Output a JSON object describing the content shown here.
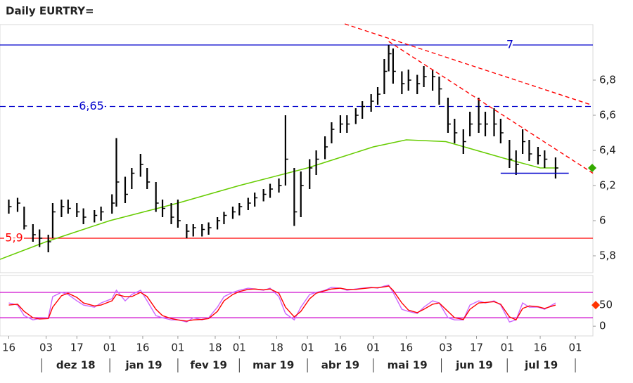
{
  "chart_data": {
    "type": "ohlc",
    "title": "Daily EURTRY=",
    "xlim": [
      "2018-11-12",
      "2019-08-09"
    ],
    "xticks": [
      {
        "value": "2018-11-16",
        "label": "16"
      },
      {
        "value": "2018-12-03",
        "label": "03"
      },
      {
        "value": "2018-12-17",
        "label": "17"
      },
      {
        "value": "2019-01-01",
        "label": "01"
      },
      {
        "value": "2019-01-16",
        "label": "16"
      },
      {
        "value": "2019-02-01",
        "label": "01"
      },
      {
        "value": "2019-02-18",
        "label": "18"
      },
      {
        "value": "2019-03-01",
        "label": "01"
      },
      {
        "value": "2019-03-18",
        "label": "18"
      },
      {
        "value": "2019-04-01",
        "label": "01"
      },
      {
        "value": "2019-04-16",
        "label": "16"
      },
      {
        "value": "2019-05-01",
        "label": "01"
      },
      {
        "value": "2019-05-16",
        "label": "16"
      },
      {
        "value": "2019-06-03",
        "label": "03"
      },
      {
        "value": "2019-06-17",
        "label": "17"
      },
      {
        "value": "2019-07-01",
        "label": "01"
      },
      {
        "value": "2019-07-16",
        "label": "16"
      },
      {
        "value": "2019-08-01",
        "label": "01"
      }
    ],
    "months": [
      {
        "label": "dez 18",
        "start": "2018-12-01"
      },
      {
        "label": "jan 19",
        "start": "2019-01-01"
      },
      {
        "label": "fev 19",
        "start": "2019-02-01"
      },
      {
        "label": "mar 19",
        "start": "2019-03-01"
      },
      {
        "label": "abr 19",
        "start": "2019-04-01"
      },
      {
        "label": "mai 19",
        "start": "2019-05-01"
      },
      {
        "label": "jun 19",
        "start": "2019-06-01"
      },
      {
        "label": "jul 19",
        "start": "2019-07-01"
      }
    ],
    "months_end": "2019-08-01",
    "ylim": [
      5.704,
      7.116
    ],
    "yticks": [
      {
        "value": 5.8,
        "label": "5,8"
      },
      6,
      {
        "value": 6.2,
        "label": "6,2"
      },
      {
        "value": 6.4,
        "label": "6,4"
      },
      {
        "value": 6.6,
        "label": "6,6"
      },
      {
        "value": 6.8,
        "label": "6,8"
      }
    ],
    "bars": {
      "color": "#000000",
      "x": [
        "2018-11-16",
        "2018-11-20",
        "2018-11-23",
        "2018-11-27",
        "2018-11-30",
        "2018-12-04",
        "2018-12-06",
        "2018-12-10",
        "2018-12-13",
        "2018-12-17",
        "2018-12-20",
        "2018-12-25",
        "2018-12-28",
        "2019-01-02",
        "2019-01-04",
        "2019-01-08",
        "2019-01-11",
        "2019-01-15",
        "2019-01-18",
        "2019-01-22",
        "2019-01-25",
        "2019-01-29",
        "2019-02-01",
        "2019-02-05",
        "2019-02-08",
        "2019-02-12",
        "2019-02-15",
        "2019-02-19",
        "2019-02-22",
        "2019-02-26",
        "2019-03-01",
        "2019-03-05",
        "2019-03-08",
        "2019-03-12",
        "2019-03-15",
        "2019-03-19",
        "2019-03-22",
        "2019-03-26",
        "2019-03-29",
        "2019-04-02",
        "2019-04-05",
        "2019-04-09",
        "2019-04-12",
        "2019-04-16",
        "2019-04-19",
        "2019-04-23",
        "2019-04-26",
        "2019-04-30",
        "2019-05-03",
        "2019-05-06",
        "2019-05-08",
        "2019-05-10",
        "2019-05-14",
        "2019-05-17",
        "2019-05-21",
        "2019-05-24",
        "2019-05-28",
        "2019-05-31",
        "2019-06-04",
        "2019-06-07",
        "2019-06-11",
        "2019-06-14",
        "2019-06-18",
        "2019-06-21",
        "2019-06-25",
        "2019-06-28",
        "2019-07-02",
        "2019-07-05",
        "2019-07-08",
        "2019-07-11",
        "2019-07-15",
        "2019-07-18",
        "2019-07-23"
      ],
      "high": [
        6.12,
        6.13,
        6.08,
        5.98,
        5.95,
        5.92,
        6.1,
        6.12,
        6.12,
        6.1,
        6.07,
        6.06,
        6.08,
        6.15,
        6.47,
        6.25,
        6.3,
        6.38,
        6.3,
        6.22,
        6.12,
        6.1,
        6.12,
        5.98,
        5.98,
        5.98,
        5.99,
        6.02,
        6.05,
        6.08,
        6.1,
        6.13,
        6.16,
        6.18,
        6.21,
        6.24,
        6.6,
        6.3,
        6.28,
        6.35,
        6.4,
        6.48,
        6.56,
        6.6,
        6.6,
        6.64,
        6.68,
        6.72,
        6.76,
        6.92,
        7.0,
        6.98,
        6.85,
        6.86,
        6.83,
        6.88,
        6.86,
        6.82,
        6.7,
        6.58,
        6.52,
        6.62,
        6.7,
        6.62,
        6.64,
        6.58,
        6.46,
        6.4,
        6.52,
        6.46,
        6.42,
        6.4,
        6.36
      ],
      "low": [
        6.04,
        6.05,
        5.95,
        5.88,
        5.85,
        5.82,
        5.9,
        6.02,
        6.04,
        6.02,
        5.98,
        5.99,
        6.0,
        6.04,
        6.08,
        6.1,
        6.18,
        6.25,
        6.18,
        6.05,
        6.02,
        5.98,
        5.96,
        5.9,
        5.91,
        5.91,
        5.92,
        5.95,
        5.98,
        6.01,
        6.03,
        6.06,
        6.08,
        6.11,
        6.13,
        6.16,
        6.2,
        5.97,
        6.02,
        6.18,
        6.26,
        6.35,
        6.44,
        6.5,
        6.5,
        6.55,
        6.58,
        6.62,
        6.66,
        6.72,
        6.85,
        6.78,
        6.72,
        6.74,
        6.72,
        6.76,
        6.74,
        6.66,
        6.5,
        6.44,
        6.38,
        6.48,
        6.5,
        6.48,
        6.48,
        6.44,
        6.3,
        6.26,
        6.38,
        6.34,
        6.32,
        6.3,
        6.24
      ],
      "close": [
        6.08,
        6.1,
        5.97,
        5.92,
        5.9,
        5.88,
        6.05,
        6.08,
        6.07,
        6.05,
        6.02,
        6.03,
        6.05,
        6.1,
        6.22,
        6.15,
        6.27,
        6.32,
        6.22,
        6.1,
        6.07,
        6.02,
        6.0,
        5.94,
        5.96,
        5.95,
        5.96,
        6.0,
        6.03,
        6.05,
        6.08,
        6.1,
        6.13,
        6.15,
        6.18,
        6.2,
        6.35,
        6.05,
        6.2,
        6.3,
        6.35,
        6.42,
        6.52,
        6.55,
        6.55,
        6.6,
        6.65,
        6.68,
        6.72,
        6.85,
        6.95,
        6.85,
        6.78,
        6.8,
        6.78,
        6.82,
        6.82,
        6.75,
        6.55,
        6.5,
        6.45,
        6.55,
        6.55,
        6.55,
        6.55,
        6.5,
        6.35,
        6.32,
        6.45,
        6.38,
        6.37,
        6.35,
        6.3
      ]
    },
    "moving_average": {
      "color": "#66cc00",
      "x": [
        "2018-11-12",
        "2018-12-03",
        "2019-01-01",
        "2019-02-01",
        "2019-03-01",
        "2019-04-01",
        "2019-04-16",
        "2019-05-01",
        "2019-05-16",
        "2019-06-03",
        "2019-06-17",
        "2019-07-01",
        "2019-07-16",
        "2019-07-24"
      ],
      "values": [
        5.78,
        5.88,
        6.0,
        6.1,
        6.2,
        6.3,
        6.36,
        6.42,
        6.46,
        6.45,
        6.4,
        6.35,
        6.3,
        6.3
      ]
    },
    "levels": [
      {
        "value": 7,
        "label": "7",
        "color": "#0000cc",
        "dashed": false
      },
      {
        "value": 6.65,
        "label": "6,65",
        "color": "#0000cc",
        "dashed": true
      },
      {
        "value": 5.9,
        "label": "5,9",
        "color": "#ff0000",
        "dashed": false
      }
    ],
    "trendlines": [
      {
        "color": "#ff0000",
        "dashed": true,
        "x": [
          "2019-04-18",
          "2019-08-08"
        ],
        "y": [
          7.12,
          6.66
        ]
      },
      {
        "color": "#ff0000",
        "dashed": true,
        "x": [
          "2019-05-08",
          "2019-08-09"
        ],
        "y": [
          7.02,
          6.27
        ]
      },
      {
        "color": "#0000cc",
        "dashed": false,
        "x": [
          "2019-06-28",
          "2019-07-29"
        ],
        "y": [
          6.27,
          6.27
        ]
      }
    ],
    "last_marker_color": "#33aa00",
    "stochastic": {
      "ylim": [
        -23,
        120
      ],
      "yticks": [
        0,
        50
      ],
      "levels": [
        20,
        80
      ],
      "level_color": "#cc00cc",
      "marker_color": "#ff3300",
      "series": [
        {
          "color": "#cc66ff",
          "values": [
            55,
            50,
            25,
            15,
            18,
            20,
            70,
            80,
            75,
            60,
            50,
            45,
            55,
            65,
            85,
            60,
            75,
            85,
            60,
            25,
            20,
            15,
            15,
            10,
            20,
            15,
            20,
            45,
            70,
            80,
            85,
            90,
            88,
            85,
            90,
            70,
            30,
            15,
            45,
            75,
            80,
            85,
            92,
            90,
            85,
            88,
            90,
            92,
            90,
            95,
            97,
            80,
            40,
            35,
            30,
            45,
            60,
            55,
            20,
            15,
            15,
            50,
            60,
            55,
            60,
            50,
            10,
            15,
            55,
            45,
            45,
            40,
            55
          ]
        },
        {
          "color": "#ff0000",
          "values": [
            50,
            52,
            35,
            20,
            17,
            18,
            45,
            72,
            78,
            68,
            55,
            48,
            50,
            60,
            75,
            70,
            70,
            80,
            70,
            40,
            25,
            18,
            15,
            12,
            15,
            16,
            18,
            35,
            60,
            75,
            82,
            87,
            88,
            86,
            88,
            78,
            45,
            22,
            35,
            65,
            78,
            84,
            88,
            90,
            87,
            87,
            89,
            91,
            91,
            93,
            95,
            85,
            55,
            38,
            32,
            40,
            52,
            55,
            35,
            20,
            16,
            40,
            55,
            56,
            58,
            52,
            22,
            15,
            42,
            48,
            46,
            42,
            50
          ]
        }
      ]
    }
  }
}
